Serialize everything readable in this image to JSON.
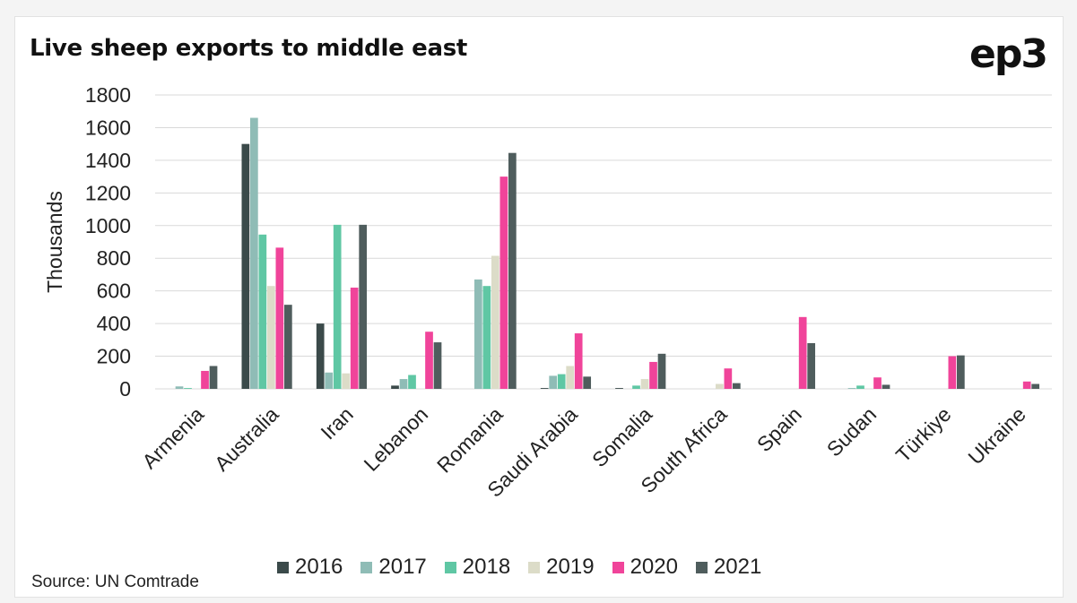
{
  "title": "Live sheep exports to middle east",
  "logo": "ep3",
  "source": "Source: UN Comtrade",
  "chart_data": {
    "type": "bar",
    "title": "Live sheep exports to middle east",
    "ylabel": "Thousands",
    "xlabel": "",
    "ylim": [
      0,
      1800
    ],
    "yticks": [
      0,
      200,
      400,
      600,
      800,
      1000,
      1200,
      1400,
      1600,
      1800
    ],
    "grid": true,
    "legend_position": "bottom",
    "categories": [
      "Armenia",
      "Australia",
      "Iran",
      "Lebanon",
      "Romania",
      "Saudi Arabia",
      "Somalia",
      "South Africa",
      "Spain",
      "Sudan",
      "Türkiye",
      "Ukraine"
    ],
    "series": [
      {
        "name": "2016",
        "color": "#3b4a4a",
        "values": [
          0,
          1500,
          400,
          20,
          0,
          5,
          5,
          0,
          0,
          0,
          0,
          0
        ]
      },
      {
        "name": "2017",
        "color": "#8fbcb6",
        "values": [
          15,
          1660,
          100,
          60,
          670,
          80,
          0,
          0,
          0,
          5,
          0,
          0
        ]
      },
      {
        "name": "2018",
        "color": "#5fc7a4",
        "values": [
          5,
          945,
          1005,
          85,
          630,
          90,
          20,
          0,
          0,
          20,
          0,
          0
        ]
      },
      {
        "name": "2019",
        "color": "#dcdcc8",
        "values": [
          0,
          630,
          95,
          0,
          815,
          140,
          60,
          30,
          0,
          0,
          0,
          0
        ]
      },
      {
        "name": "2020",
        "color": "#f0449a",
        "values": [
          110,
          865,
          620,
          350,
          1300,
          340,
          165,
          125,
          440,
          70,
          200,
          45
        ]
      },
      {
        "name": "2021",
        "color": "#4f5d5d",
        "values": [
          140,
          515,
          1005,
          285,
          1445,
          75,
          215,
          35,
          280,
          25,
          205,
          30
        ]
      }
    ]
  }
}
